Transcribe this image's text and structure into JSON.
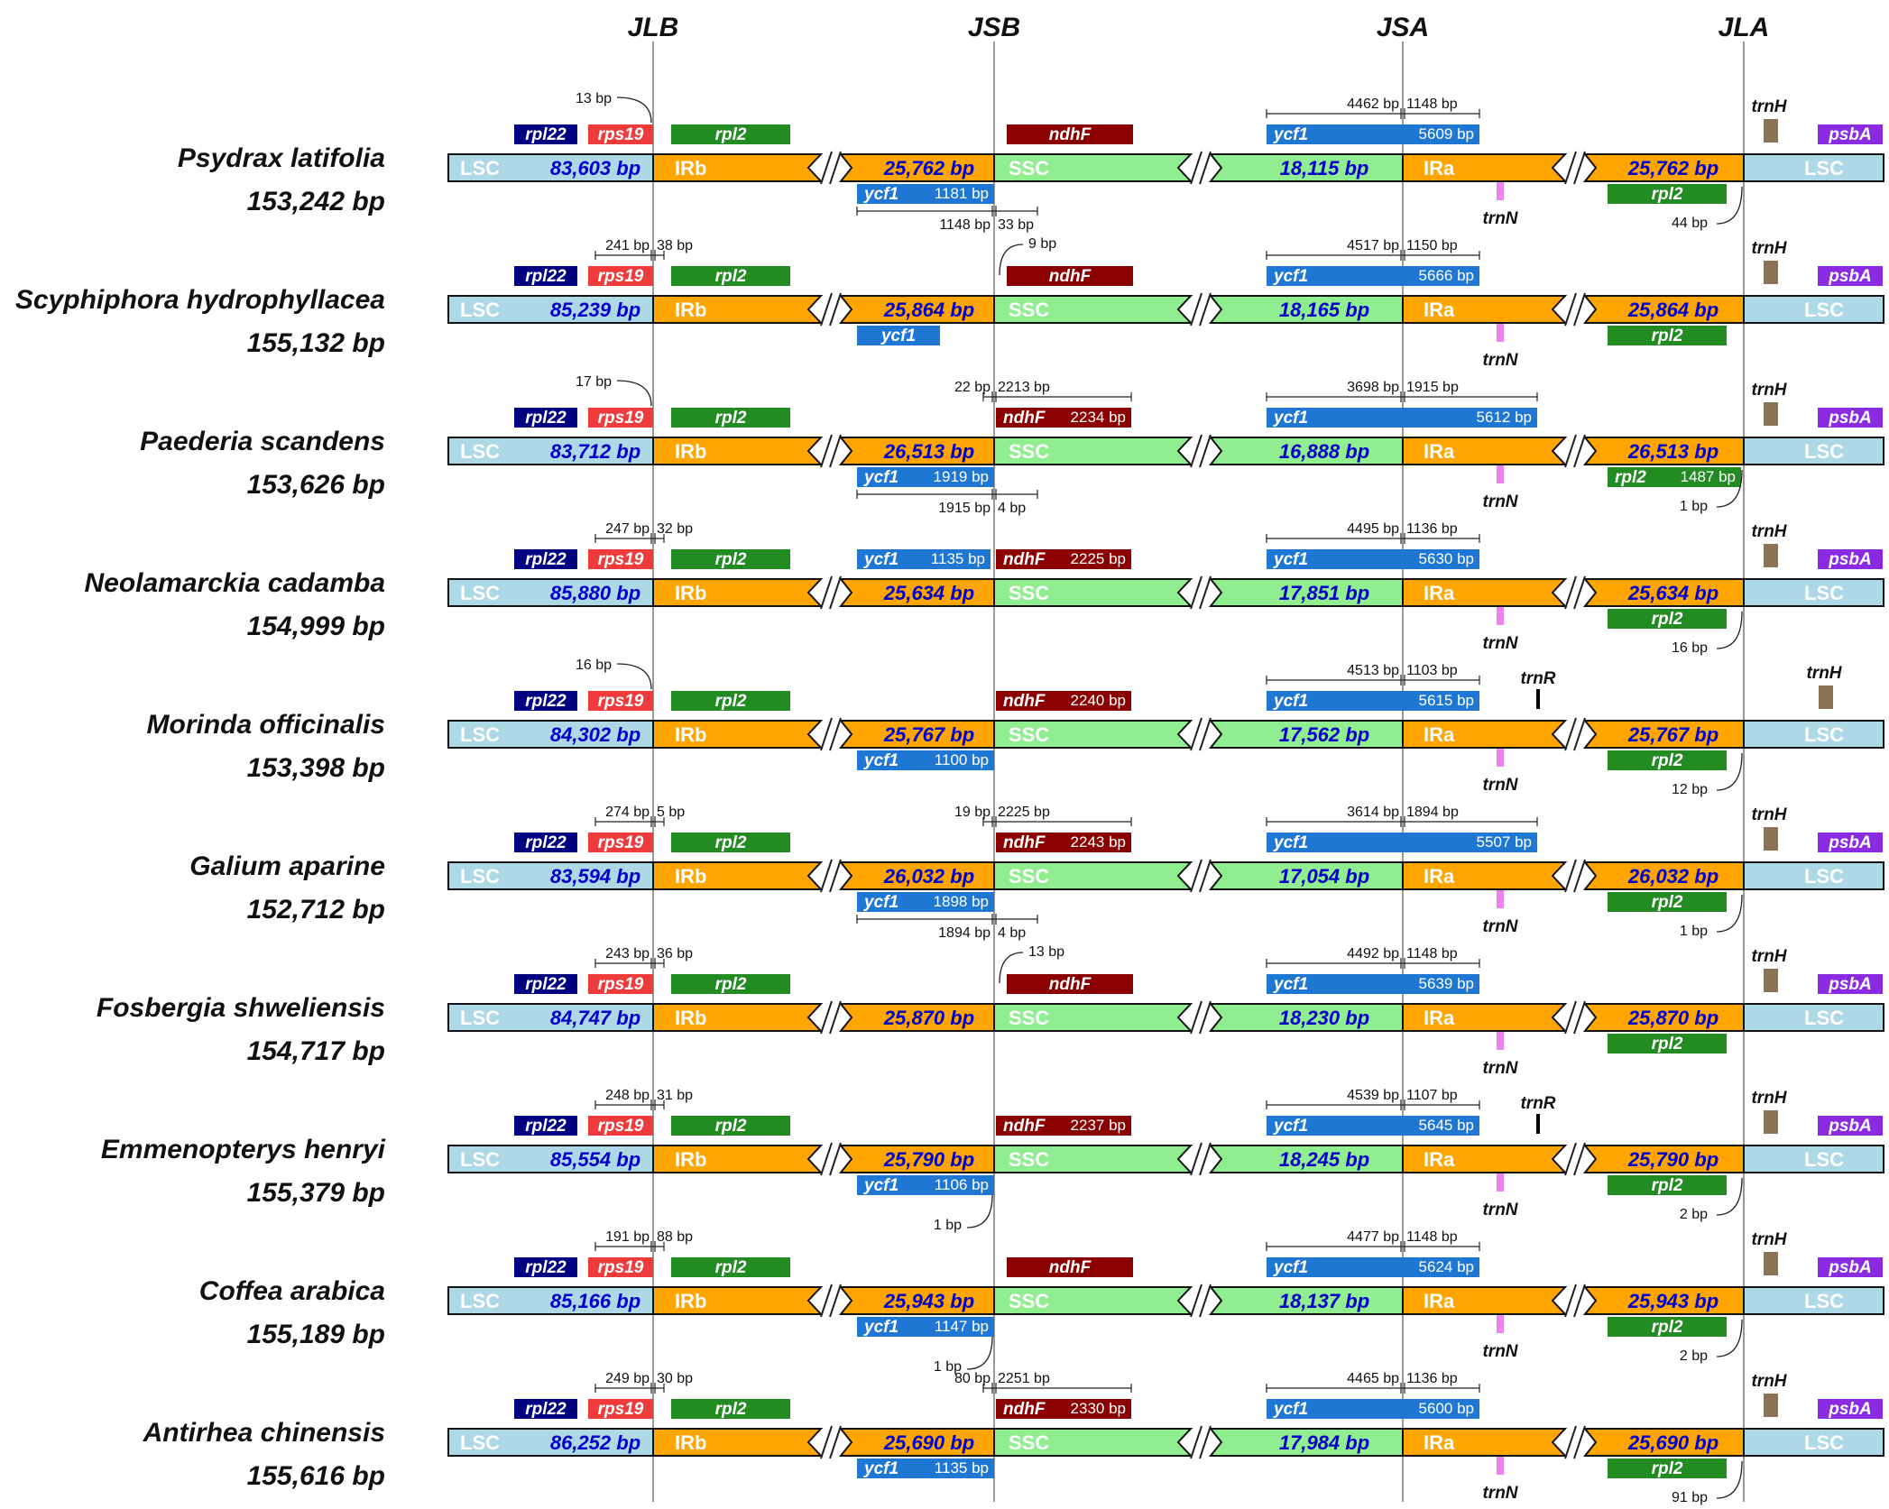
{
  "junctions": [
    "JLB",
    "JSB",
    "JSA",
    "JLA"
  ],
  "segment_labels": {
    "lsc": "LSC",
    "irb": "IRb",
    "ssc": "SSC",
    "ira": "IRa"
  },
  "gene_names": {
    "rpl22": "rpl22",
    "rps19": "rps19",
    "rpl2": "rpl2",
    "ndhF": "ndhF",
    "ycf1": "ycf1",
    "trnH": "trnH",
    "psbA": "psbA",
    "trnN": "trnN",
    "trnR": "trnR"
  },
  "colors": {
    "lsc": "#add8e6",
    "ir": "#ffa500",
    "ssc": "#90ee90",
    "rpl22": "#000080",
    "rps19": "#ef3b3b",
    "rpl2": "#228b22",
    "ndhF": "#8b0000",
    "ycf1": "#1f77d4",
    "trnH": "#8b7355",
    "psbA": "#8a2be2",
    "trnN": "#ee82ee",
    "trnR": "#000000",
    "size_text": "#0000cd"
  },
  "species": [
    {
      "name": "Psydrax latifolia",
      "total": "153,242 bp",
      "lsc": "83,603 bp",
      "ir": "25,762 bp",
      "ssc": "18,115 bp",
      "jlb_ann": "13 bp",
      "ycf1_top_ann": [
        "4462 bp",
        "1148 bp"
      ],
      "ycf1_top_size": "5609 bp",
      "ycf1_bottom_size": "1181 bp",
      "ycf1_bottom_ann": [
        "1148 bp",
        "33 bp"
      ],
      "jla_ann": "44 bp"
    },
    {
      "name": "Scyphiphora hydrophyllacea",
      "total": "155,132 bp",
      "lsc": "85,239 bp",
      "ir": "25,864 bp",
      "ssc": "18,165 bp",
      "jlb_ann": [
        "241 bp",
        "38 bp"
      ],
      "jsb_ann": "9 bp",
      "ycf1_top_ann": [
        "4517 bp",
        "1150 bp"
      ],
      "ycf1_top_size": "5666 bp"
    },
    {
      "name": "Paederia scandens",
      "total": "153,626 bp",
      "lsc": "83,712 bp",
      "ir": "26,513 bp",
      "ssc": "16,888 bp",
      "jlb_ann": "17 bp",
      "jsb_ann": [
        "22 bp",
        "2213 bp"
      ],
      "ndhF_size": "2234 bp",
      "ycf1_top_ann": [
        "3698 bp",
        "1915 bp"
      ],
      "ycf1_top_size": "5612 bp",
      "ycf1_bottom_size": "1919 bp",
      "ycf1_bottom_ann": [
        "1915 bp",
        "4 bp"
      ],
      "jla_ann": "1 bp",
      "rpl2_size": "1487 bp"
    },
    {
      "name": "Neolamarckia cadamba",
      "total": "154,999 bp",
      "lsc": "85,880 bp",
      "ir": "25,634 bp",
      "ssc": "17,851 bp",
      "jlb_ann": [
        "247 bp",
        "32 bp"
      ],
      "ycf1_ir_size": "1135 bp",
      "ndhF_size": "2225 bp",
      "ycf1_top_ann": [
        "4495 bp",
        "1136 bp"
      ],
      "ycf1_top_size": "5630 bp",
      "jla_ann": "16 bp"
    },
    {
      "name": "Morinda officinalis",
      "total": "153,398 bp",
      "lsc": "84,302 bp",
      "ir": "25,767 bp",
      "ssc": "17,562 bp",
      "jlb_ann": "16 bp",
      "ndhF_size": "2240 bp",
      "ycf1_top_ann": [
        "4513 bp",
        "1103 bp"
      ],
      "ycf1_top_size": "5615 bp",
      "ycf1_bottom_size": "1100 bp",
      "jla_ann": "12 bp"
    },
    {
      "name": "Galium aparine",
      "total": "152,712 bp",
      "lsc": "83,594 bp",
      "ir": "26,032 bp",
      "ssc": "17,054 bp",
      "jlb_ann": [
        "274 bp",
        "5 bp"
      ],
      "jsb_ann": [
        "19 bp",
        "2225 bp"
      ],
      "ndhF_size": "2243 bp",
      "ycf1_top_ann": [
        "3614 bp",
        "1894 bp"
      ],
      "ycf1_top_size": "5507 bp",
      "ycf1_bottom_size": "1898 bp",
      "ycf1_bottom_ann": [
        "1894 bp",
        "4 bp"
      ],
      "jla_ann": "1 bp"
    },
    {
      "name": "Fosbergia shweliensis",
      "total": "154,717 bp",
      "lsc": "84,747 bp",
      "ir": "25,870 bp",
      "ssc": "18,230 bp",
      "jlb_ann": [
        "243 bp",
        "36 bp"
      ],
      "jsb_ann": "13 bp",
      "ycf1_top_ann": [
        "4492 bp",
        "1148 bp"
      ],
      "ycf1_top_size": "5639 bp"
    },
    {
      "name": "Emmenopterys henryi",
      "total": "155,379 bp",
      "lsc": "85,554 bp",
      "ir": "25,790 bp",
      "ssc": "18,245 bp",
      "jlb_ann": [
        "248 bp",
        "31 bp"
      ],
      "ndhF_size": "2237 bp",
      "ycf1_top_ann": [
        "4539 bp",
        "1107 bp"
      ],
      "ycf1_top_size": "5645 bp",
      "ycf1_bottom_size": "1106 bp",
      "jsb_bottom_ann": "1 bp",
      "jla_ann": "2 bp"
    },
    {
      "name": "Coffea arabica",
      "total": "155,189 bp",
      "lsc": "85,166 bp",
      "ir": "25,943 bp",
      "ssc": "18,137 bp",
      "jlb_ann": [
        "191 bp",
        "88 bp"
      ],
      "ycf1_top_ann": [
        "4477 bp",
        "1148 bp"
      ],
      "ycf1_top_size": "5624 bp",
      "ycf1_bottom_size": "1147 bp",
      "jsb_bottom_ann": "1 bp",
      "jla_ann": "2 bp"
    },
    {
      "name": "Antirhea chinensis",
      "total": "155,616 bp",
      "lsc": "86,252 bp",
      "ir": "25,690 bp",
      "ssc": "17,984 bp",
      "jlb_ann": [
        "249 bp",
        "30 bp"
      ],
      "jsb_ann": [
        "80 bp",
        "2251 bp"
      ],
      "ndhF_size": "2330 bp",
      "ycf1_top_ann": [
        "4465 bp",
        "1136 bp"
      ],
      "ycf1_top_size": "5600 bp",
      "ycf1_bottom_size": "1135 bp",
      "jla_ann": "91 bp"
    }
  ]
}
